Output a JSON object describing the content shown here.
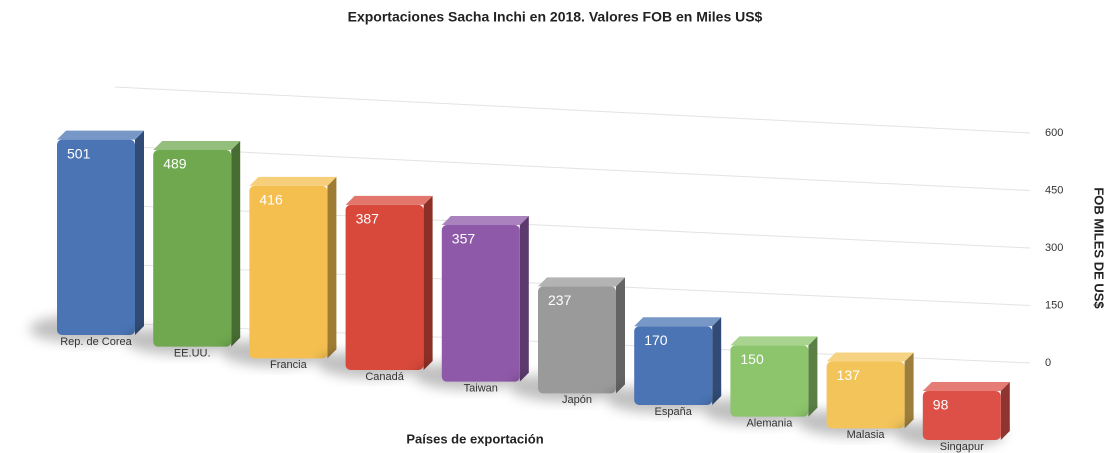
{
  "chart_data": {
    "type": "bar",
    "title": "Exportaciones Sacha Inchi en 2018. Valores FOB en Miles US$",
    "x_label": "Países de exportación",
    "y_label": "FOB MILES DE US$",
    "categories": [
      "Rep. de Corea",
      "EE.UU.",
      "Francia",
      "Canadá",
      "Taiwan",
      "Japón",
      "España",
      "Alemania",
      "Malasia",
      "Singapur"
    ],
    "values": [
      501,
      489,
      416,
      387,
      357,
      237,
      170,
      150,
      137,
      98
    ],
    "colors": [
      "#4a74b4",
      "#6fa84f",
      "#f4bf4f",
      "#d8483b",
      "#8e59a8",
      "#9a9a9a",
      "#4a74b4",
      "#8cc56b",
      "#f2c45a",
      "#dc5048"
    ],
    "ylim": [
      0,
      600
    ],
    "yticks": [
      0,
      150,
      300,
      450,
      600
    ],
    "grid": true
  }
}
